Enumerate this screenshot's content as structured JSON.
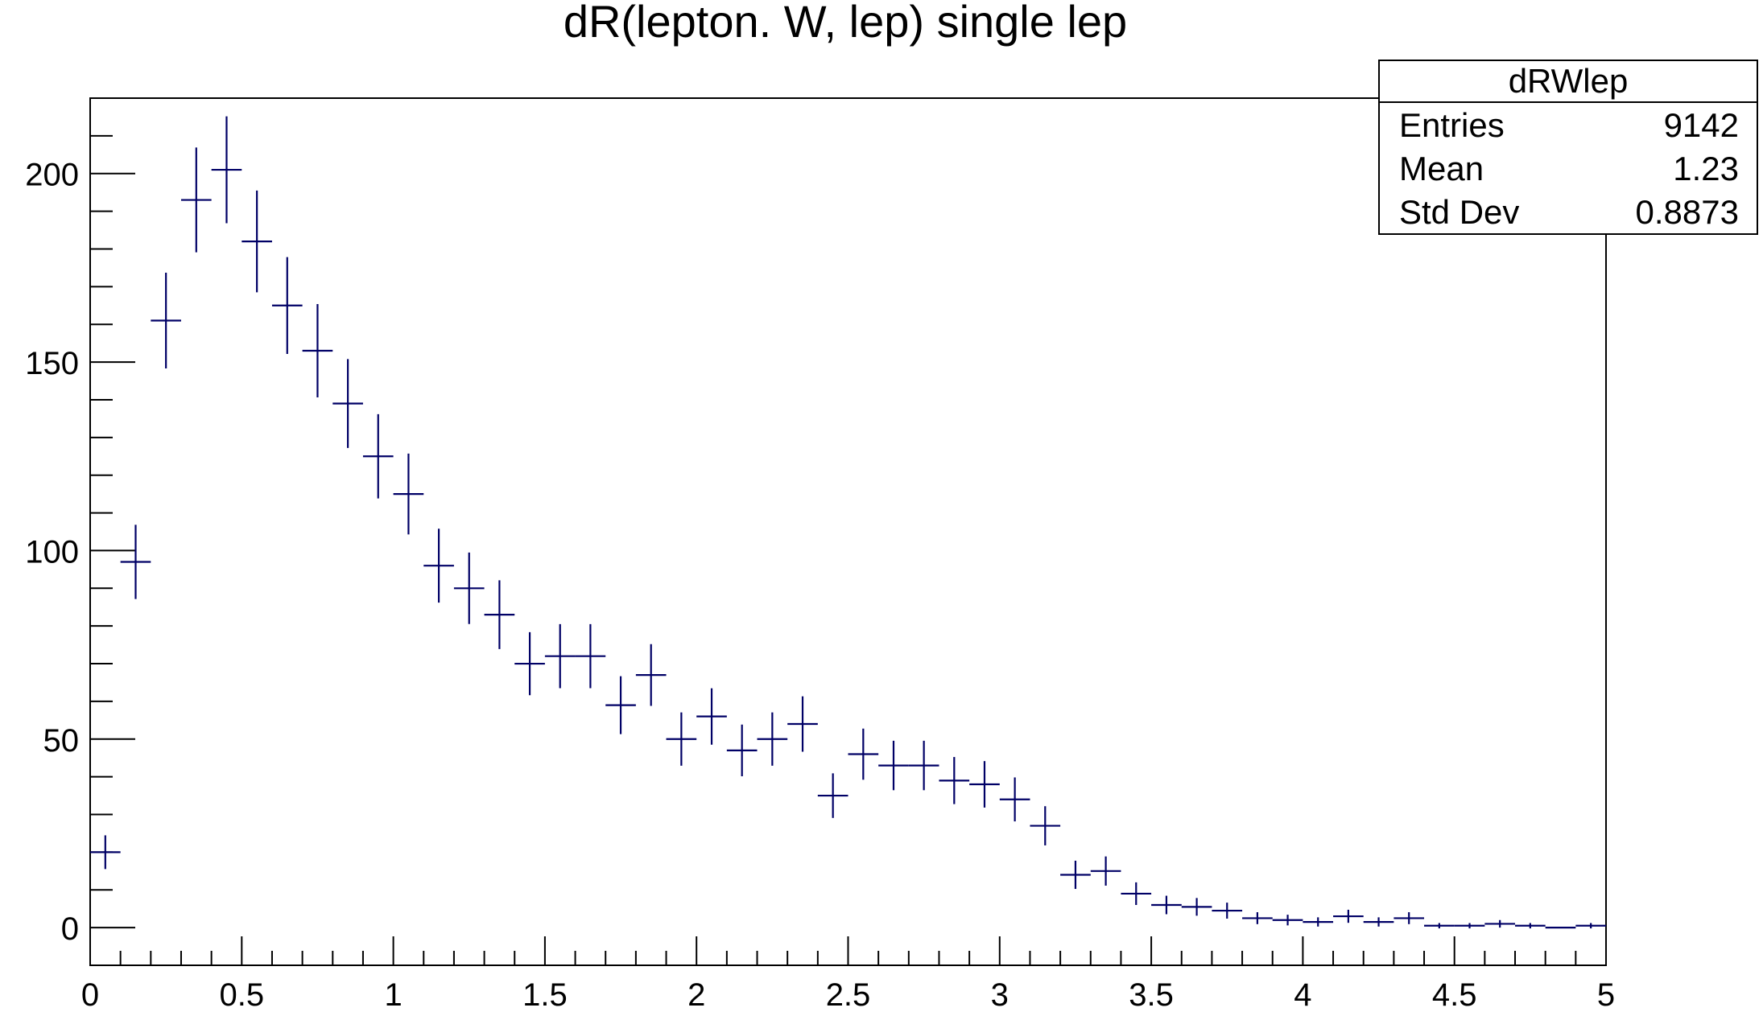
{
  "chart_data": {
    "type": "scatter",
    "title": "dR(lepton. W, lep) single lep",
    "xlabel": "",
    "ylabel": "",
    "xlim": [
      0,
      5
    ],
    "ylim": [
      -10,
      220
    ],
    "x_ticks": [
      "0",
      "0.5",
      "1",
      "1.5",
      "2",
      "2.5",
      "3",
      "3.5",
      "4",
      "4.5",
      "5"
    ],
    "y_ticks": [
      "0",
      "50",
      "100",
      "150",
      "200"
    ],
    "bin_width": 0.1,
    "marker_color": "#000066",
    "x": [
      0.05,
      0.15,
      0.25,
      0.35,
      0.45,
      0.55,
      0.65,
      0.75,
      0.85,
      0.95,
      1.05,
      1.15,
      1.25,
      1.35,
      1.45,
      1.55,
      1.65,
      1.75,
      1.85,
      1.95,
      2.05,
      2.15,
      2.25,
      2.35,
      2.45,
      2.55,
      2.65,
      2.75,
      2.85,
      2.95,
      3.05,
      3.15,
      3.25,
      3.35,
      3.45,
      3.55,
      3.65,
      3.75,
      3.85,
      3.95,
      4.05,
      4.15,
      4.25,
      4.35,
      4.45,
      4.55,
      4.65,
      4.75,
      4.85,
      4.95
    ],
    "values": [
      20,
      97,
      161,
      193,
      201,
      182,
      165,
      153,
      139,
      125,
      115,
      96,
      90,
      83,
      70,
      72,
      72,
      59,
      67,
      50,
      56,
      47,
      50,
      54,
      35,
      46,
      43,
      43,
      39,
      38,
      34,
      27,
      14,
      15,
      9,
      6,
      5.5,
      4.5,
      2.5,
      2,
      1.5,
      3,
      1.5,
      2.5,
      0.5,
      0.5,
      1,
      0.5,
      0,
      0.5
    ],
    "stats": {
      "name": "dRWlep",
      "rows": [
        {
          "label": "Entries",
          "value": "9142"
        },
        {
          "label": "Mean",
          "value": "1.23"
        },
        {
          "label": "Std Dev",
          "value": "0.8873"
        }
      ]
    }
  }
}
